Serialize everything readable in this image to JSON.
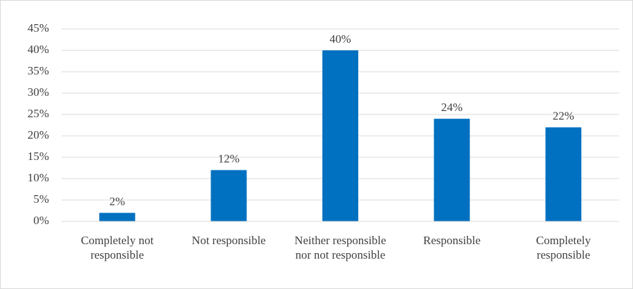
{
  "chart_data": {
    "type": "bar",
    "categories": [
      "Completely not responsible",
      "Not responsible",
      "Neither responsible nor not responsible",
      "Responsible",
      "Completely responsible"
    ],
    "values": [
      2,
      12,
      40,
      24,
      22
    ],
    "value_labels": [
      "2%",
      "12%",
      "40%",
      "24%",
      "22%"
    ],
    "color": "#0070c0",
    "ylim": [
      0,
      45
    ],
    "yticks": [
      {
        "value": 0,
        "label": "0%"
      },
      {
        "value": 5,
        "label": "5%"
      },
      {
        "value": 10,
        "label": "10%"
      },
      {
        "value": 15,
        "label": "15%"
      },
      {
        "value": 20,
        "label": "20%"
      },
      {
        "value": 25,
        "label": "25%"
      },
      {
        "value": 30,
        "label": "30%"
      },
      {
        "value": 35,
        "label": "35%"
      },
      {
        "value": 40,
        "label": "40%"
      },
      {
        "value": 45,
        "label": "45%"
      }
    ],
    "grid": true
  }
}
